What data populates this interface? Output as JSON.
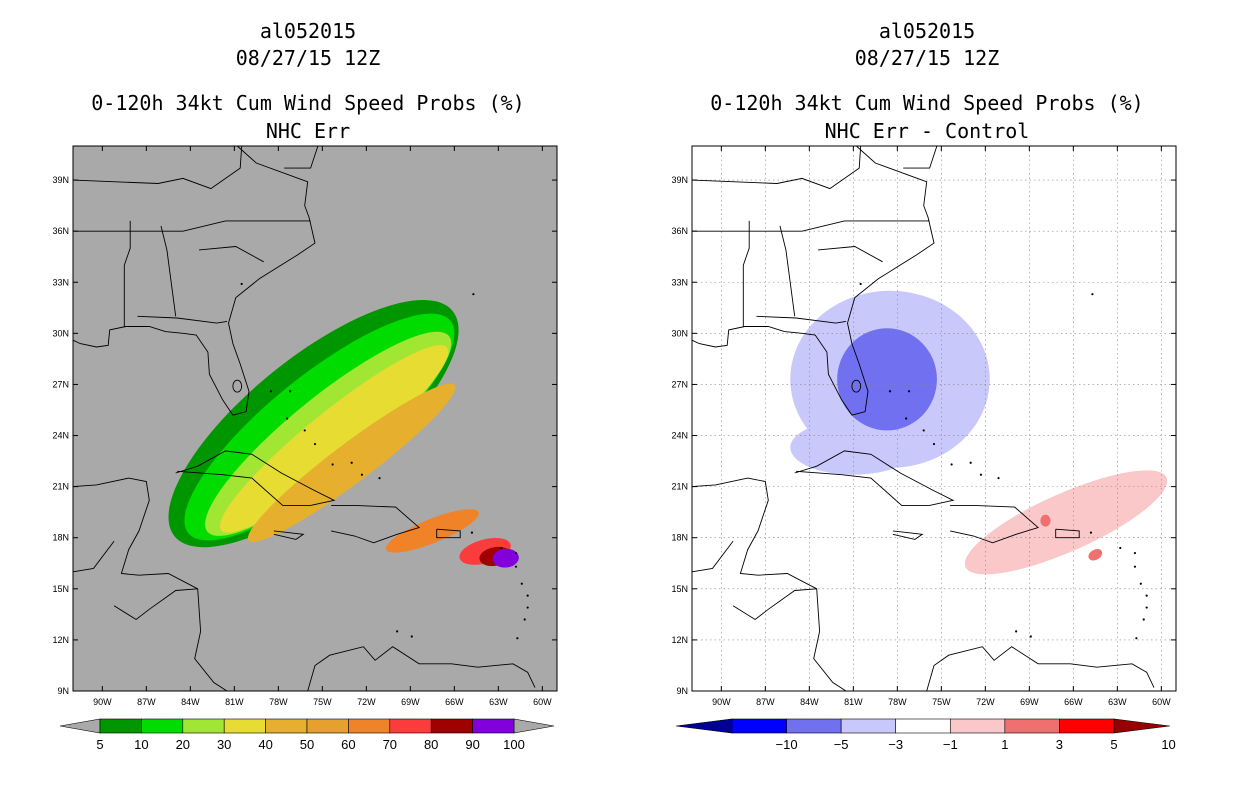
{
  "chart_data": [
    {
      "type": "heatmap",
      "storm_id": "al052015",
      "date": "08/27/15 12Z",
      "title": "0-120h 34kt Cum Wind Speed Probs (%)",
      "subtitle": "NHC Err",
      "lon_ticks": [
        "90W",
        "87W",
        "84W",
        "81W",
        "78W",
        "75W",
        "72W",
        "69W",
        "66W",
        "63W",
        "60W"
      ],
      "lat_ticks": [
        "39N",
        "36N",
        "33N",
        "30N",
        "27N",
        "24N",
        "21N",
        "18N",
        "15N",
        "12N",
        "9N"
      ],
      "lon_range": [
        -92,
        -59
      ],
      "lat_range": [
        9,
        41
      ],
      "background": "#a9a9a9",
      "gridlines": false,
      "colorbar": {
        "labels": [
          "5",
          "10",
          "20",
          "30",
          "40",
          "50",
          "60",
          "70",
          "80",
          "90",
          "100"
        ],
        "colors": [
          "#009600",
          "#00dc00",
          "#a0e632",
          "#e6dc32",
          "#e6af2d",
          "#e6a02d",
          "#f08228",
          "#fa3c3c",
          "#a00000",
          "#8200dc"
        ]
      },
      "contours": [
        {
          "level": 5,
          "color": "#009600",
          "lon": -75.6,
          "lat": 24.7,
          "rx": 12.2,
          "ry": 3.85,
          "angle": 39
        },
        {
          "level": 10,
          "color": "#00dc00",
          "lon": -75.2,
          "lat": 24.5,
          "rx": 11.5,
          "ry": 3.0,
          "angle": 39
        },
        {
          "level": 20,
          "color": "#a0e632",
          "lon": -74.6,
          "lat": 24.1,
          "rx": 10.6,
          "ry": 2.2,
          "angle": 39
        },
        {
          "level": 30,
          "color": "#e6dc32",
          "lon": -74.2,
          "lat": 23.8,
          "rx": 9.9,
          "ry": 1.6,
          "angle": 39
        },
        {
          "level": 40,
          "color": "#e6af2d",
          "lon": -73.0,
          "lat": 22.4,
          "rx": 8.8,
          "ry": 1.15,
          "angle": 37
        },
        {
          "level": 60,
          "color": "#f08228",
          "lon": -67.5,
          "lat": 18.4,
          "rx": 3.4,
          "ry": 0.7,
          "angle": 22
        },
        {
          "level": 70,
          "color": "#fa3c3c",
          "lon": -63.9,
          "lat": 17.2,
          "rx": 1.8,
          "ry": 0.7,
          "angle": 15
        },
        {
          "level": 80,
          "color": "#a00000",
          "lon": -63.2,
          "lat": 16.9,
          "rx": 1.1,
          "ry": 0.55,
          "angle": 10
        },
        {
          "level": 90,
          "color": "#8200dc",
          "lon": -62.5,
          "lat": 16.8,
          "rx": 0.9,
          "ry": 0.55,
          "angle": 5
        }
      ]
    },
    {
      "type": "heatmap",
      "storm_id": "al052015",
      "date": "08/27/15 12Z",
      "title": "0-120h 34kt Cum Wind Speed Probs (%)",
      "subtitle": "NHC Err - Control",
      "lon_ticks": [
        "90W",
        "87W",
        "84W",
        "81W",
        "78W",
        "75W",
        "72W",
        "69W",
        "66W",
        "63W",
        "60W"
      ],
      "lat_ticks": [
        "39N",
        "36N",
        "33N",
        "30N",
        "27N",
        "24N",
        "21N",
        "18N",
        "15N",
        "12N",
        "9N"
      ],
      "lon_range": [
        -92,
        -59
      ],
      "lat_range": [
        9,
        41
      ],
      "background": "#ffffff",
      "gridlines": true,
      "colorbar": {
        "labels": [
          "−10",
          "−5",
          "−3",
          "−1",
          "1",
          "3",
          "5",
          "10"
        ],
        "colors": [
          "#000096",
          "#0000ff",
          "#7070f0",
          "#c8c8fa",
          "#ffffff",
          "#fac8c8",
          "#f07070",
          "#ff0000",
          "#960000"
        ]
      },
      "contours": [
        {
          "level": -3,
          "color": "#c8c8fa",
          "lon": -78.5,
          "lat": 27.3,
          "rx": 6.8,
          "ry": 5.2,
          "angle": 0
        },
        {
          "level": -1,
          "color": "#c8c8fa",
          "lon": -81.0,
          "lat": 23.3,
          "rx": 4.3,
          "ry": 1.6,
          "angle": 0
        },
        {
          "level": -5,
          "color": "#7070f0",
          "lon": -78.7,
          "lat": 27.3,
          "rx": 3.4,
          "ry": 3.0,
          "angle": 0
        },
        {
          "level": 1,
          "color": "#fac8c8",
          "lon": -66.5,
          "lat": 18.9,
          "rx": 7.5,
          "ry": 1.7,
          "angle": 24
        },
        {
          "level": 3,
          "color": "#f07070",
          "lon": -67.9,
          "lat": 19.0,
          "rx": 0.35,
          "ry": 0.35,
          "angle": 0
        },
        {
          "level": 3,
          "color": "#f07070",
          "lon": -64.5,
          "lat": 17.0,
          "rx": 0.5,
          "ry": 0.3,
          "angle": 30
        }
      ]
    }
  ]
}
